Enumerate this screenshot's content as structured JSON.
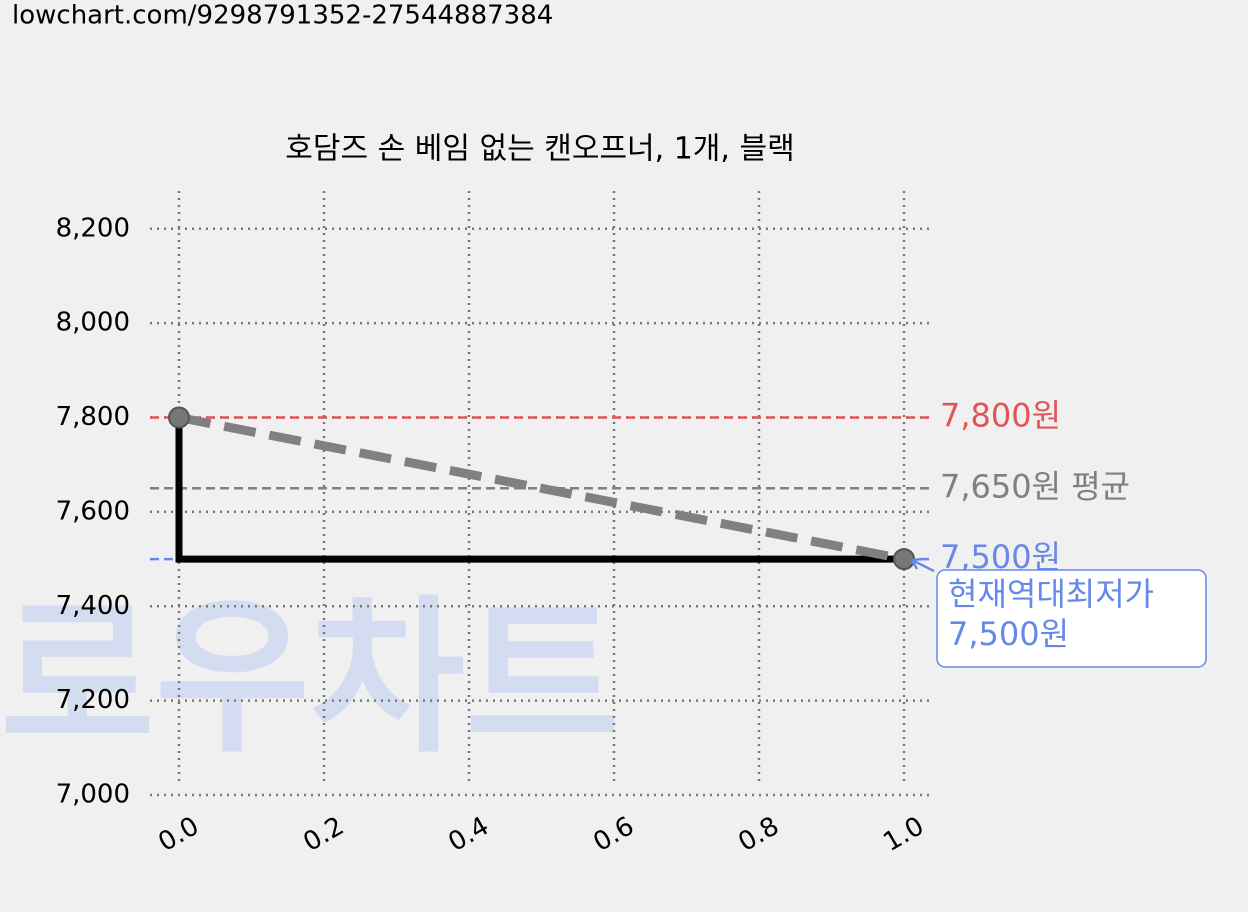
{
  "url": "lowchart.com/9298791352-27544887384",
  "watermark": "로우차트",
  "chart_data": {
    "type": "line",
    "title": "호담즈 손 베임 없는 캔오프너, 1개, 블랙",
    "x": [
      0,
      1
    ],
    "values": [
      7800,
      7500
    ],
    "color": "#000000",
    "trend_color": "#808080",
    "xlim": [
      -0.04,
      1.04
    ],
    "xticks": [
      {
        "value": 0,
        "label": "0.0"
      },
      {
        "value": 0.2,
        "label": "0.2"
      },
      {
        "value": 0.4,
        "label": "0.4"
      },
      {
        "value": 0.6,
        "label": "0.6"
      },
      {
        "value": 0.8,
        "label": "0.8"
      },
      {
        "value": 1,
        "label": "1.0"
      }
    ],
    "ylim": [
      7000,
      8280
    ],
    "yticks": [
      {
        "value": 7000,
        "label": "7,000"
      },
      {
        "value": 7200,
        "label": "7,200"
      },
      {
        "value": 7400,
        "label": "7,400"
      },
      {
        "value": 7600,
        "label": "7,600"
      },
      {
        "value": 7800,
        "label": "7,800"
      },
      {
        "value": 8000,
        "label": "8,000"
      },
      {
        "value": 8200,
        "label": "8,200"
      }
    ],
    "grid": true,
    "reference_lines": [
      {
        "value": 7800,
        "label": "7,800원",
        "color": "#e05555"
      },
      {
        "value": 7650,
        "label": "7,650원 평균",
        "color": "#808080"
      },
      {
        "value": 7500,
        "label": "7,500원",
        "color": "#6688e8"
      }
    ],
    "annotation": {
      "lines": [
        "현재역대최저가",
        "7,500원"
      ],
      "x": 1,
      "y": 7500,
      "color": "#6688e8"
    }
  }
}
